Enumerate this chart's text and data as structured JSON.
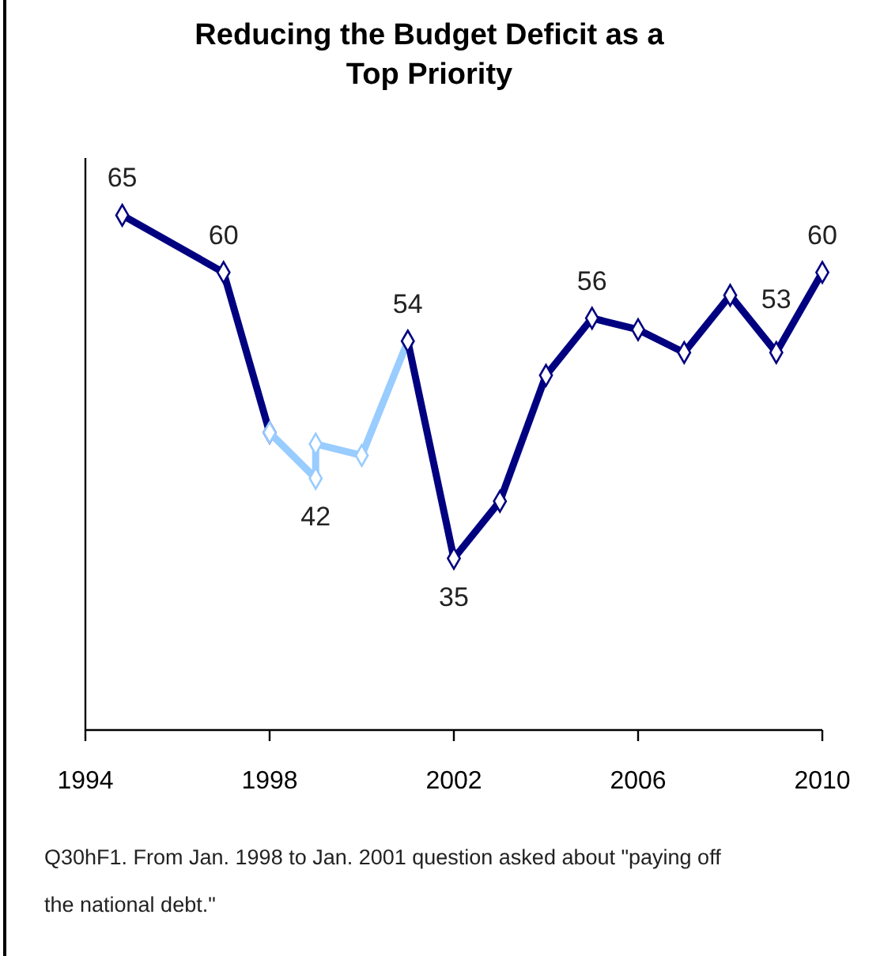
{
  "chart_data": {
    "type": "line",
    "title": "Reducing the Budget Deficit as a Top Priority",
    "xlim": [
      1994,
      2010
    ],
    "xticks": [
      1994,
      1998,
      2002,
      2006,
      2010
    ],
    "ylim": [
      20,
      70
    ],
    "tick_labels": "x",
    "marker": "diamond",
    "line_style": "solid",
    "series": [
      {
        "color": "#000080",
        "x": [
          1994.8,
          1997,
          1998
        ],
        "values": [
          65,
          60,
          46
        ],
        "value_labels": [
          "65",
          "60",
          null
        ]
      },
      {
        "color": "#99ccff",
        "x": [
          1998,
          1999,
          1999,
          2000,
          2001
        ],
        "values": [
          46,
          42,
          45,
          44,
          54
        ],
        "value_labels": [
          null,
          "42",
          null,
          null,
          null
        ]
      },
      {
        "color": "#000080",
        "x": [
          2001,
          2002,
          2003,
          2004,
          2005,
          2006,
          2007,
          2008,
          2009,
          2010
        ],
        "values": [
          54,
          35,
          40,
          51,
          56,
          55,
          53,
          58,
          53,
          60
        ],
        "value_labels": [
          "54",
          "35",
          null,
          null,
          "56",
          null,
          null,
          null,
          "53",
          "60"
        ]
      }
    ],
    "annotations": [
      "Q30hF1. From Jan. 1998 to Jan. 2001 question asked about \"paying off the national debt.\""
    ]
  }
}
